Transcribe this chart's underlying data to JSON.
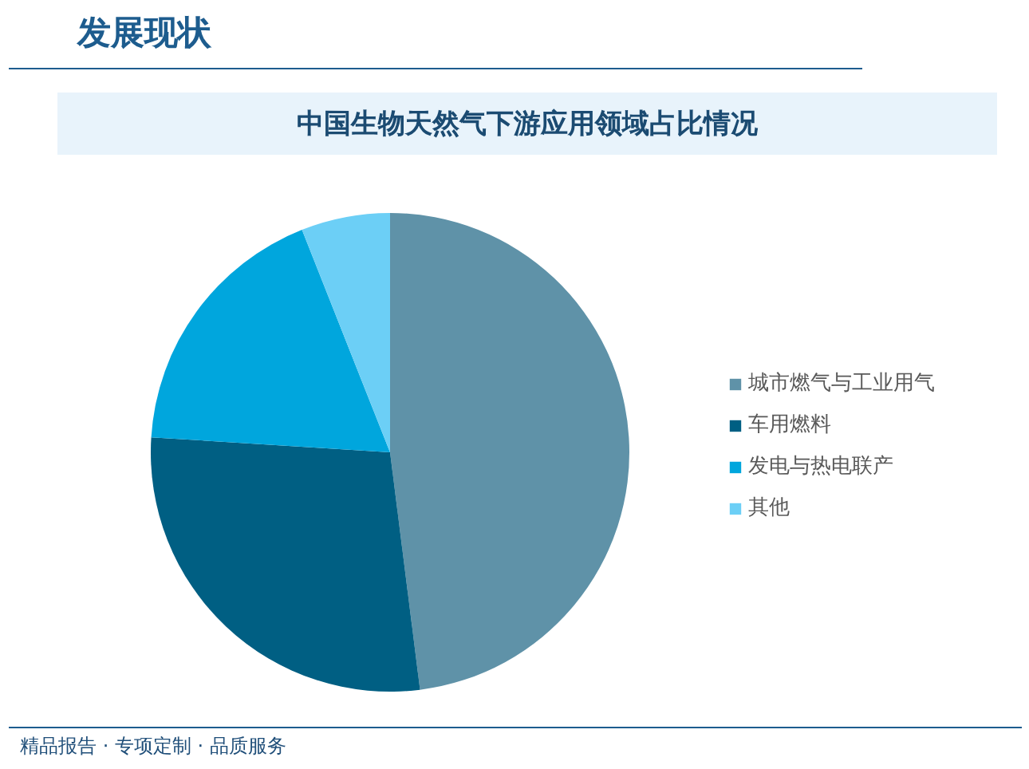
{
  "chart_data": {
    "type": "pie",
    "title": "中国生物天然气下游应用领域占比情况",
    "categories": [
      "城市燃气与工业用气",
      "车用燃料",
      "发电与热电联产",
      "其他"
    ],
    "values": [
      48,
      28,
      18,
      6
    ],
    "colors": [
      "#5f92a8",
      "#005f83",
      "#00a6dd",
      "#6ccff6"
    ],
    "legend": "right",
    "annotations": [
      "发展现状",
      "精品报告 · 专项定制 · 品质服务"
    ]
  }
}
